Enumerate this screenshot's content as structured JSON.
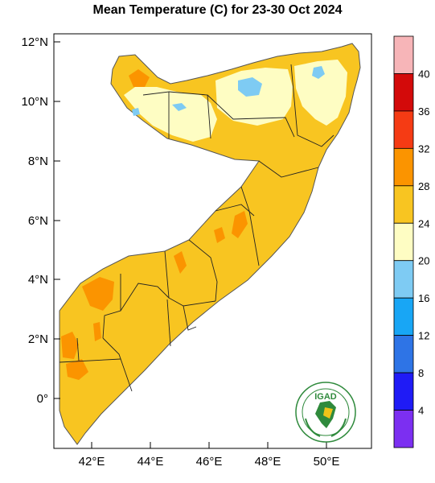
{
  "title": "Mean Temperature (C) for 23-30 Oct 2024",
  "map": {
    "lat_ticks": [
      "12°N",
      "10°N",
      "8°N",
      "6°N",
      "4°N",
      "2°N",
      "0°"
    ],
    "lon_ticks": [
      "42°E",
      "44°E",
      "46°E",
      "48°E",
      "50°E"
    ]
  },
  "colorbar": {
    "labels": [
      "40",
      "36",
      "32",
      "28",
      "24",
      "20",
      "16",
      "12",
      "8",
      "4"
    ],
    "colors": [
      "#f7b5b8",
      "#d30a0a",
      "#f53b14",
      "#fb9400",
      "#f8c521",
      "#fefdc3",
      "#7ecbf3",
      "#18a6f5",
      "#2e74e6",
      "#1f1bf6",
      "#7c2ff1"
    ]
  },
  "logo": {
    "text": "IGAD"
  }
}
